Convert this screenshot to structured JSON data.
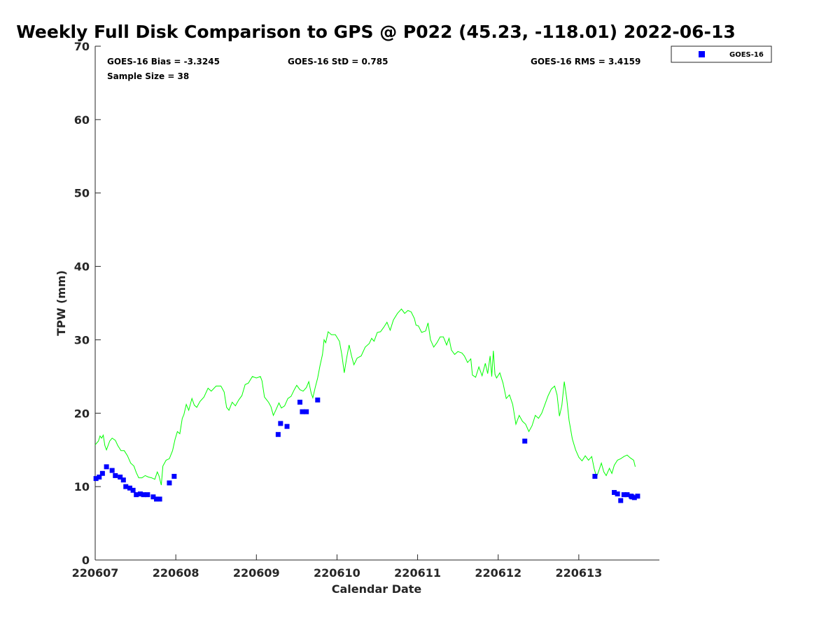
{
  "chart_data": {
    "type": "scatter",
    "title": "Weekly Full Disk Comparison to GPS @ P022 (45.23, -118.01) 2022-06-13",
    "xlabel": "Calendar Date",
    "ylabel": "TPW (mm)",
    "xlim": [
      0,
      7
    ],
    "ylim": [
      0,
      70
    ],
    "x_ticks": [
      0,
      1,
      2,
      3,
      4,
      5,
      6
    ],
    "x_tick_labels": [
      "220607",
      "220608",
      "220609",
      "220610",
      "220611",
      "220612",
      "220613"
    ],
    "y_ticks": [
      0,
      10,
      20,
      30,
      40,
      50,
      60,
      70
    ],
    "y_tick_labels": [
      "0",
      "10",
      "20",
      "30",
      "40",
      "50",
      "60",
      "70"
    ],
    "grid": false,
    "legend_position": "top-right, outside plot area",
    "stats": {
      "bias": "GOES-16 Bias = -3.3245",
      "std": "GOES-16 StD = 0.785",
      "rms": "GOES-16 RMS = 3.4159",
      "sample": "Sample Size = 38"
    },
    "series": [
      {
        "name": "GOES-16",
        "type": "scatter",
        "marker": "square",
        "color": "#0000ff",
        "points": [
          [
            0.01,
            11.1
          ],
          [
            0.05,
            11.3
          ],
          [
            0.09,
            11.8
          ],
          [
            0.14,
            12.7
          ],
          [
            0.21,
            12.2
          ],
          [
            0.25,
            11.5
          ],
          [
            0.31,
            11.3
          ],
          [
            0.35,
            10.9
          ],
          [
            0.38,
            10.0
          ],
          [
            0.43,
            9.8
          ],
          [
            0.47,
            9.5
          ],
          [
            0.51,
            8.9
          ],
          [
            0.56,
            9.0
          ],
          [
            0.6,
            8.9
          ],
          [
            0.65,
            8.9
          ],
          [
            0.72,
            8.6
          ],
          [
            0.76,
            8.3
          ],
          [
            0.8,
            8.3
          ],
          [
            0.92,
            10.5
          ],
          [
            0.98,
            11.4
          ],
          [
            2.27,
            17.1
          ],
          [
            2.3,
            18.6
          ],
          [
            2.38,
            18.2
          ],
          [
            2.54,
            21.5
          ],
          [
            2.57,
            20.2
          ],
          [
            2.62,
            20.2
          ],
          [
            2.76,
            21.8
          ],
          [
            5.33,
            16.2
          ],
          [
            6.2,
            11.4
          ],
          [
            6.44,
            9.2
          ],
          [
            6.48,
            9.0
          ],
          [
            6.52,
            8.1
          ],
          [
            6.56,
            8.9
          ],
          [
            6.6,
            8.9
          ],
          [
            6.65,
            8.7
          ],
          [
            6.69,
            8.5
          ],
          [
            6.73,
            8.7
          ],
          [
            6.66,
            8.6
          ]
        ]
      },
      {
        "name": "GPS",
        "type": "line",
        "color": "#00ff00",
        "points": [
          [
            0.0,
            15.7
          ],
          [
            0.04,
            16.2
          ],
          [
            0.06,
            16.9
          ],
          [
            0.08,
            16.6
          ],
          [
            0.1,
            17.0
          ],
          [
            0.12,
            15.6
          ],
          [
            0.14,
            15.0
          ],
          [
            0.18,
            16.2
          ],
          [
            0.21,
            16.6
          ],
          [
            0.25,
            16.3
          ],
          [
            0.28,
            15.6
          ],
          [
            0.32,
            14.9
          ],
          [
            0.36,
            14.9
          ],
          [
            0.4,
            14.2
          ],
          [
            0.44,
            13.2
          ],
          [
            0.48,
            12.8
          ],
          [
            0.51,
            11.9
          ],
          [
            0.54,
            11.2
          ],
          [
            0.58,
            11.2
          ],
          [
            0.62,
            11.5
          ],
          [
            0.66,
            11.3
          ],
          [
            0.7,
            11.2
          ],
          [
            0.74,
            11.0
          ],
          [
            0.77,
            12.0
          ],
          [
            0.79,
            11.5
          ],
          [
            0.82,
            10.2
          ],
          [
            0.84,
            12.8
          ],
          [
            0.88,
            13.6
          ],
          [
            0.92,
            13.8
          ],
          [
            0.96,
            14.9
          ],
          [
            0.99,
            16.4
          ],
          [
            1.02,
            17.5
          ],
          [
            1.05,
            17.2
          ],
          [
            1.08,
            19.3
          ],
          [
            1.1,
            19.8
          ],
          [
            1.13,
            21.2
          ],
          [
            1.16,
            20.4
          ],
          [
            1.2,
            22.0
          ],
          [
            1.23,
            21.1
          ],
          [
            1.26,
            20.8
          ],
          [
            1.3,
            21.6
          ],
          [
            1.35,
            22.2
          ],
          [
            1.4,
            23.4
          ],
          [
            1.44,
            23.0
          ],
          [
            1.5,
            23.7
          ],
          [
            1.56,
            23.7
          ],
          [
            1.6,
            22.9
          ],
          [
            1.63,
            20.8
          ],
          [
            1.66,
            20.4
          ],
          [
            1.7,
            21.5
          ],
          [
            1.74,
            21.0
          ],
          [
            1.78,
            21.8
          ],
          [
            1.82,
            22.4
          ],
          [
            1.86,
            23.9
          ],
          [
            1.9,
            24.1
          ],
          [
            1.95,
            25.0
          ],
          [
            2.0,
            24.8
          ],
          [
            2.05,
            25.0
          ],
          [
            2.07,
            24.4
          ],
          [
            2.1,
            22.2
          ],
          [
            2.15,
            21.5
          ],
          [
            2.18,
            20.9
          ],
          [
            2.21,
            19.7
          ],
          [
            2.24,
            20.4
          ],
          [
            2.28,
            21.4
          ],
          [
            2.31,
            20.7
          ],
          [
            2.35,
            21.0
          ],
          [
            2.39,
            22.0
          ],
          [
            2.43,
            22.3
          ],
          [
            2.47,
            23.2
          ],
          [
            2.5,
            23.8
          ],
          [
            2.54,
            23.2
          ],
          [
            2.58,
            23.0
          ],
          [
            2.62,
            23.5
          ],
          [
            2.65,
            24.3
          ],
          [
            2.68,
            22.7
          ],
          [
            2.7,
            22.1
          ],
          [
            2.73,
            23.5
          ],
          [
            2.76,
            24.8
          ],
          [
            2.79,
            26.5
          ],
          [
            2.82,
            28.0
          ],
          [
            2.84,
            30.0
          ],
          [
            2.86,
            29.6
          ],
          [
            2.89,
            31.1
          ],
          [
            2.93,
            30.7
          ],
          [
            2.98,
            30.7
          ],
          [
            3.03,
            29.8
          ],
          [
            3.06,
            28.0
          ],
          [
            3.09,
            25.5
          ],
          [
            3.12,
            27.5
          ],
          [
            3.15,
            29.3
          ],
          [
            3.18,
            27.8
          ],
          [
            3.21,
            26.6
          ],
          [
            3.25,
            27.5
          ],
          [
            3.3,
            27.8
          ],
          [
            3.35,
            29.0
          ],
          [
            3.4,
            29.5
          ],
          [
            3.43,
            30.2
          ],
          [
            3.46,
            29.8
          ],
          [
            3.5,
            31.0
          ],
          [
            3.54,
            31.1
          ],
          [
            3.58,
            31.7
          ],
          [
            3.62,
            32.4
          ],
          [
            3.66,
            31.3
          ],
          [
            3.7,
            32.7
          ],
          [
            3.75,
            33.6
          ],
          [
            3.8,
            34.2
          ],
          [
            3.84,
            33.6
          ],
          [
            3.88,
            34.0
          ],
          [
            3.92,
            33.8
          ],
          [
            3.96,
            32.9
          ],
          [
            3.98,
            32.0
          ],
          [
            4.01,
            31.9
          ],
          [
            4.05,
            31.0
          ],
          [
            4.1,
            31.2
          ],
          [
            4.13,
            32.3
          ],
          [
            4.16,
            30.0
          ],
          [
            4.2,
            29.0
          ],
          [
            4.24,
            29.6
          ],
          [
            4.28,
            30.4
          ],
          [
            4.32,
            30.4
          ],
          [
            4.36,
            29.3
          ],
          [
            4.39,
            30.2
          ],
          [
            4.42,
            28.6
          ],
          [
            4.46,
            28.0
          ],
          [
            4.5,
            28.4
          ],
          [
            4.55,
            28.2
          ],
          [
            4.58,
            27.8
          ],
          [
            4.62,
            26.9
          ],
          [
            4.66,
            27.4
          ],
          [
            4.68,
            25.2
          ],
          [
            4.72,
            24.9
          ],
          [
            4.76,
            26.3
          ],
          [
            4.8,
            25.1
          ],
          [
            4.84,
            26.8
          ],
          [
            4.87,
            25.4
          ],
          [
            4.9,
            27.8
          ],
          [
            4.92,
            25.0
          ],
          [
            4.94,
            28.5
          ],
          [
            4.96,
            25.3
          ],
          [
            4.98,
            24.8
          ],
          [
            5.02,
            25.5
          ],
          [
            5.06,
            24.1
          ],
          [
            5.1,
            22.0
          ],
          [
            5.14,
            22.5
          ],
          [
            5.18,
            21.2
          ],
          [
            5.22,
            18.5
          ],
          [
            5.26,
            19.7
          ],
          [
            5.3,
            18.9
          ],
          [
            5.34,
            18.5
          ],
          [
            5.38,
            17.5
          ],
          [
            5.42,
            18.3
          ],
          [
            5.46,
            19.7
          ],
          [
            5.5,
            19.3
          ],
          [
            5.54,
            20.0
          ],
          [
            5.58,
            21.2
          ],
          [
            5.62,
            22.4
          ],
          [
            5.66,
            23.3
          ],
          [
            5.7,
            23.7
          ],
          [
            5.73,
            22.5
          ],
          [
            5.76,
            19.6
          ],
          [
            5.79,
            21.1
          ],
          [
            5.82,
            24.3
          ],
          [
            5.85,
            22.0
          ],
          [
            5.88,
            19.0
          ],
          [
            5.92,
            16.5
          ],
          [
            5.96,
            15.0
          ],
          [
            6.0,
            14.0
          ],
          [
            6.04,
            13.5
          ],
          [
            6.08,
            14.2
          ],
          [
            6.12,
            13.6
          ],
          [
            6.16,
            14.1
          ],
          [
            6.19,
            12.5
          ],
          [
            6.22,
            11.3
          ],
          [
            6.25,
            12.2
          ],
          [
            6.28,
            13.2
          ],
          [
            6.31,
            12.0
          ],
          [
            6.34,
            11.5
          ],
          [
            6.38,
            12.5
          ],
          [
            6.41,
            11.8
          ],
          [
            6.44,
            12.9
          ],
          [
            6.48,
            13.6
          ],
          [
            6.52,
            13.8
          ],
          [
            6.56,
            14.1
          ],
          [
            6.6,
            14.3
          ],
          [
            6.64,
            13.9
          ],
          [
            6.68,
            13.6
          ],
          [
            6.7,
            12.7
          ]
        ]
      }
    ]
  },
  "legend": {
    "entries": [
      "GOES-16"
    ]
  }
}
